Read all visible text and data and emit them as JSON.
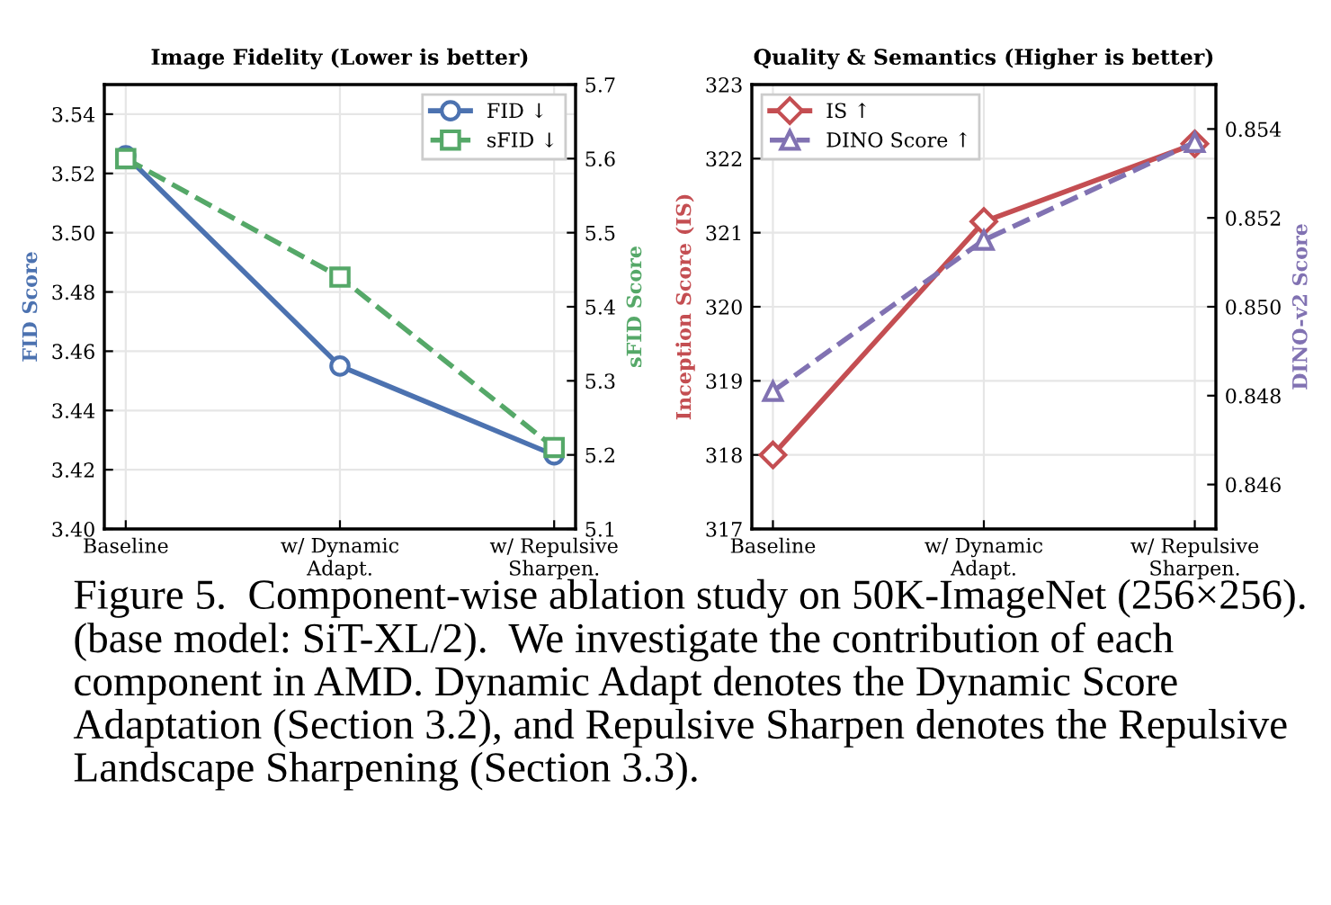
{
  "chart_data": [
    {
      "type": "line",
      "title": "Image Fidelity (Lower is better)",
      "ylabel": "FID Score",
      "y2label": "sFID Score",
      "categories": [
        "Baseline",
        "w/ Dynamic\nAdapt.",
        "w/ Repulsive\nSharpen."
      ],
      "series": [
        {
          "name": "FID ↓",
          "color": "#4c72b0",
          "values": [
            3.526,
            3.455,
            3.425
          ],
          "marker": "circle",
          "line_style": "solid"
        },
        {
          "name": "sFID ↓",
          "color": "#55a868",
          "values": [
            5.6,
            5.44,
            5.21
          ],
          "marker": "square",
          "line_style": "dashed",
          "axis": "y2"
        }
      ],
      "ylim": [
        3.4,
        3.55
      ],
      "yticks": [
        {
          "value": 3.4,
          "label": "3.40"
        },
        3.42,
        3.44,
        3.46,
        3.48,
        {
          "value": 3.5,
          "label": "3.50"
        },
        3.52,
        3.54
      ],
      "y2lim": [
        5.1,
        5.7
      ],
      "y2ticks": [
        5.1,
        5.2,
        5.3,
        5.4,
        5.5,
        5.6,
        5.7
      ],
      "grid": true,
      "legend": "top right",
      "annotations": [
        "Figure 5.  Component-wise ablation study on 50K-ImageNet (256×256). (base model: SiT-XL/2).  We investigate the contribution of each component in AMD. Dynamic Adapt denotes the Dynamic Score Adaptation (Section 3.2), and Repulsive Sharpen denotes the Repulsive Landscape Sharpening (Section 3.3)."
      ]
    },
    {
      "type": "line",
      "title": "Quality & Semantics (Higher is better)",
      "ylabel": "Inception Score (IS)",
      "y2label": "DINO-v2 Score",
      "categories": [
        "Baseline",
        "w/ Dynamic\nAdapt.",
        "w/ Repulsive\nSharpen."
      ],
      "series": [
        {
          "name": "IS ↑",
          "color": "#c44e52",
          "values": [
            318.0,
            321.15,
            322.2
          ],
          "marker": "diamond",
          "line_style": "solid"
        },
        {
          "name": "DINO Score ↑",
          "color": "#8172b2",
          "values": [
            0.8481,
            0.8515,
            0.8537
          ],
          "marker": "triangle",
          "line_style": "dashed",
          "axis": "y2"
        }
      ],
      "ylim": [
        317,
        323
      ],
      "yticks": [
        317,
        318,
        319,
        320,
        321,
        322,
        323
      ],
      "y2lim": [
        0.845,
        0.855
      ],
      "y2ticks": [
        0.846,
        0.848,
        {
          "value": 0.85,
          "label": "0.850"
        },
        0.852,
        0.854
      ],
      "grid": true,
      "legend": "top left"
    }
  ]
}
